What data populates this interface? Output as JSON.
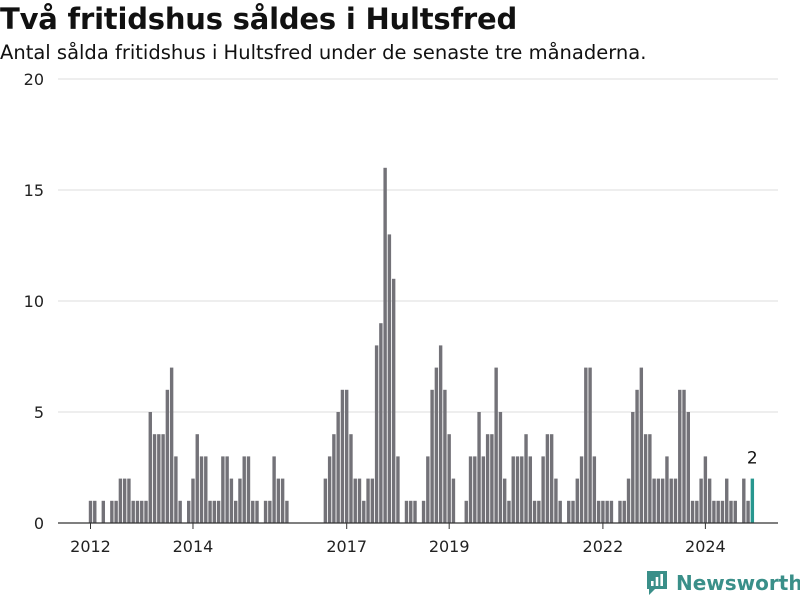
{
  "title": "Två fritidshus såldes i Hultsfred",
  "subtitle": "Antal sålda fritidshus i Hultsfred under de senaste tre månaderna.",
  "brand": {
    "name": "Newsworthy",
    "icon": "newsworthy-logo-icon",
    "color": "#3a8f89"
  },
  "colors": {
    "bar": "#737278",
    "highlight": "#28978f",
    "grid": "#dddddd"
  },
  "chart_data": {
    "type": "bar",
    "title": "Två fritidshus såldes i Hultsfred",
    "subtitle": "Antal sålda fritidshus i Hultsfred under de senaste tre månaderna.",
    "xlabel": "",
    "ylabel": "",
    "ylim": [
      0,
      20
    ],
    "yticks": [
      0,
      5,
      10,
      15,
      20
    ],
    "xtick_labels": [
      {
        "label": "2012",
        "month_index": 0
      },
      {
        "label": "2014",
        "month_index": 24
      },
      {
        "label": "2017",
        "month_index": 60
      },
      {
        "label": "2019",
        "month_index": 84
      },
      {
        "label": "2022",
        "month_index": 120
      },
      {
        "label": "2024",
        "month_index": 144
      }
    ],
    "start_month": "2012-01",
    "period": "month",
    "values": [
      1,
      1,
      0,
      1,
      0,
      1,
      1,
      2,
      2,
      2,
      1,
      1,
      1,
      1,
      5,
      4,
      4,
      4,
      6,
      7,
      3,
      1,
      0,
      1,
      2,
      4,
      3,
      3,
      1,
      1,
      1,
      3,
      3,
      2,
      1,
      2,
      3,
      3,
      1,
      1,
      0,
      1,
      1,
      3,
      2,
      2,
      1,
      0,
      0,
      0,
      0,
      0,
      0,
      0,
      0,
      2,
      3,
      4,
      5,
      6,
      6,
      4,
      2,
      2,
      1,
      2,
      2,
      8,
      9,
      16,
      13,
      11,
      3,
      0,
      1,
      1,
      1,
      0,
      1,
      3,
      6,
      7,
      8,
      6,
      4,
      2,
      0,
      0,
      1,
      3,
      3,
      5,
      3,
      4,
      4,
      7,
      5,
      2,
      1,
      3,
      3,
      3,
      4,
      3,
      1,
      1,
      3,
      4,
      4,
      2,
      1,
      0,
      1,
      1,
      2,
      3,
      7,
      7,
      3,
      1,
      1,
      1,
      1,
      0,
      1,
      1,
      2,
      5,
      6,
      7,
      4,
      4,
      2,
      2,
      2,
      3,
      2,
      2,
      6,
      6,
      5,
      1,
      1,
      2,
      3,
      2,
      1,
      1,
      1,
      2,
      1,
      1,
      0,
      2,
      1,
      2
    ],
    "highlight_index": 155,
    "annotation": {
      "label": "2",
      "index": 155
    },
    "grid": true,
    "legend": "none"
  }
}
